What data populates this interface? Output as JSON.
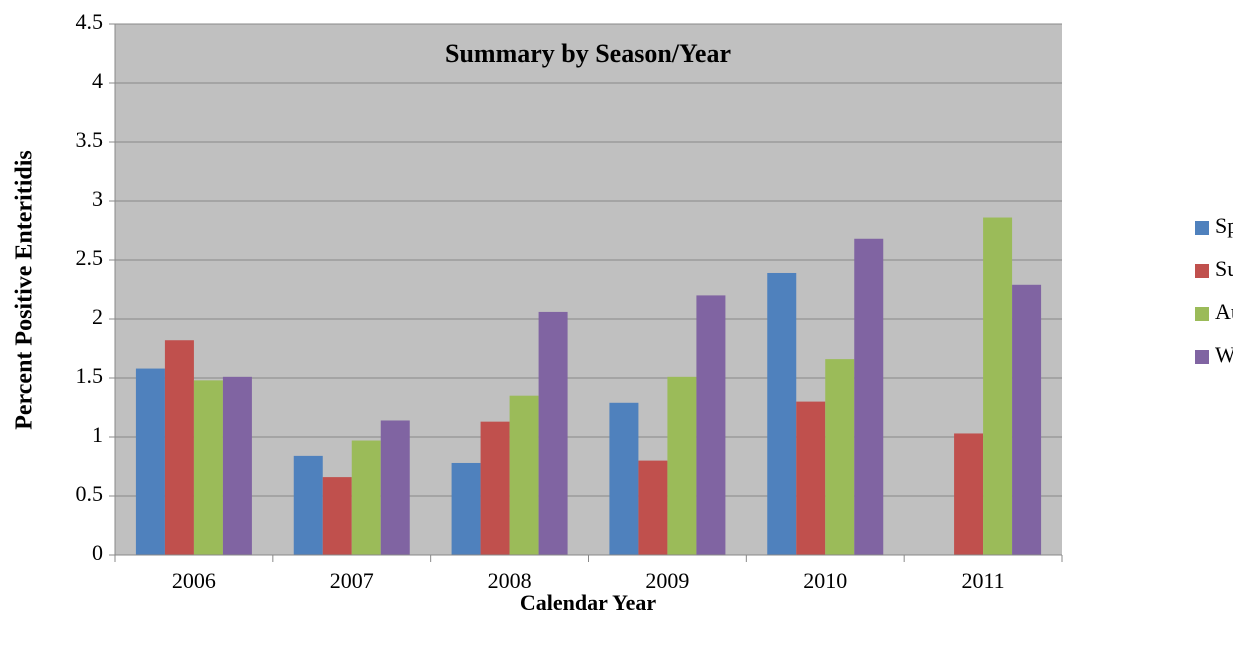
{
  "chart_data": {
    "type": "bar",
    "title": "Summary by Season/Year",
    "x_label": "Calendar Year",
    "y_label": "Percent Positive Enteritidis",
    "categories": [
      "2006",
      "2007",
      "2008",
      "2009",
      "2010",
      "2011"
    ],
    "series": [
      {
        "name": "Spring",
        "color": "#4f81bd",
        "values": [
          1.58,
          0.84,
          0.78,
          1.29,
          2.39,
          0
        ]
      },
      {
        "name": "Summer",
        "color": "#c0504d",
        "values": [
          1.82,
          0.66,
          1.13,
          0.8,
          1.3,
          1.03
        ]
      },
      {
        "name": "Autumn",
        "color": "#9bbb59",
        "values": [
          1.48,
          0.97,
          1.35,
          1.51,
          1.66,
          2.86
        ]
      },
      {
        "name": "Winter",
        "color": "#8064a2",
        "values": [
          1.51,
          1.14,
          2.06,
          2.2,
          2.68,
          2.29
        ]
      }
    ],
    "ylim": [
      0,
      4.5
    ],
    "yticks": [
      0,
      0.5,
      1,
      1.5,
      2,
      2.5,
      3,
      3.5,
      4,
      4.5
    ],
    "grid": true,
    "legend": "right"
  }
}
